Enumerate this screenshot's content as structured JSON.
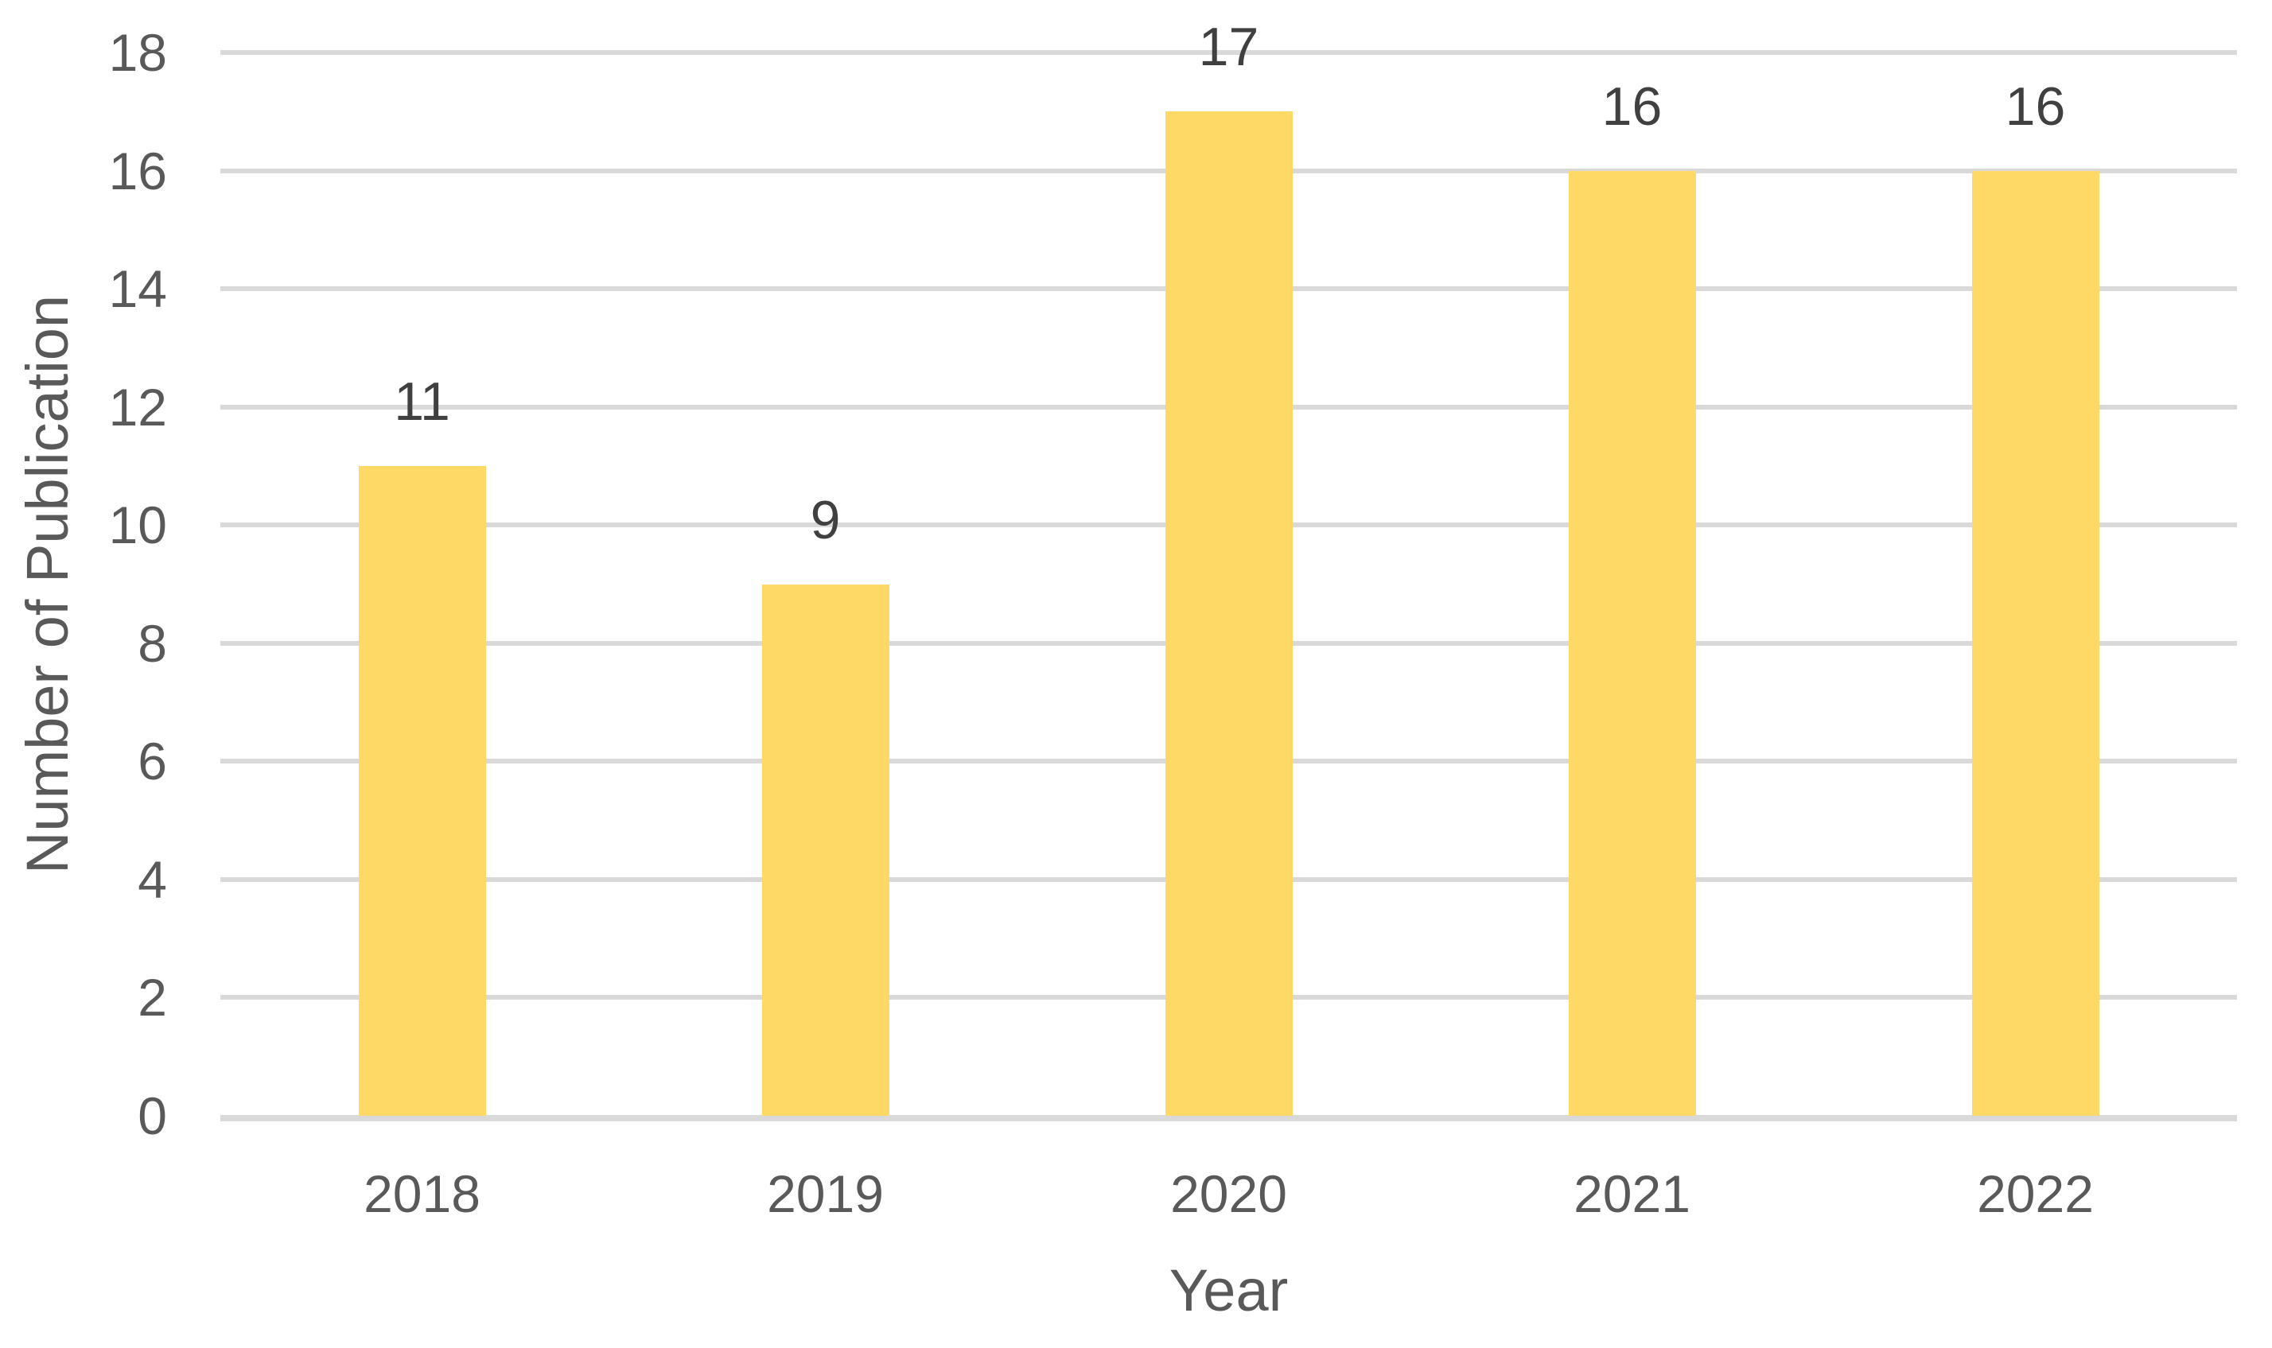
{
  "chart_data": {
    "type": "bar",
    "title": "",
    "categories": [
      "2018",
      "2019",
      "2020",
      "2021",
      "2022"
    ],
    "values": [
      11,
      9,
      17,
      16,
      16
    ],
    "data_labels": [
      "11",
      "9",
      "17",
      "16",
      "16"
    ],
    "xlabel": "Year",
    "ylabel": "Number of Publication",
    "ylim": [
      0,
      18
    ],
    "yticks": [
      0,
      2,
      4,
      6,
      8,
      10,
      12,
      14,
      16,
      18
    ],
    "grid": "horizontal",
    "legend": "none",
    "colors": {
      "bar": "#FFD966",
      "gridline": "#D9D9D9",
      "axis_line": "#D9D9D9",
      "tick_label": "#595959",
      "data_label": "#404040",
      "axis_title": "#595959"
    }
  }
}
